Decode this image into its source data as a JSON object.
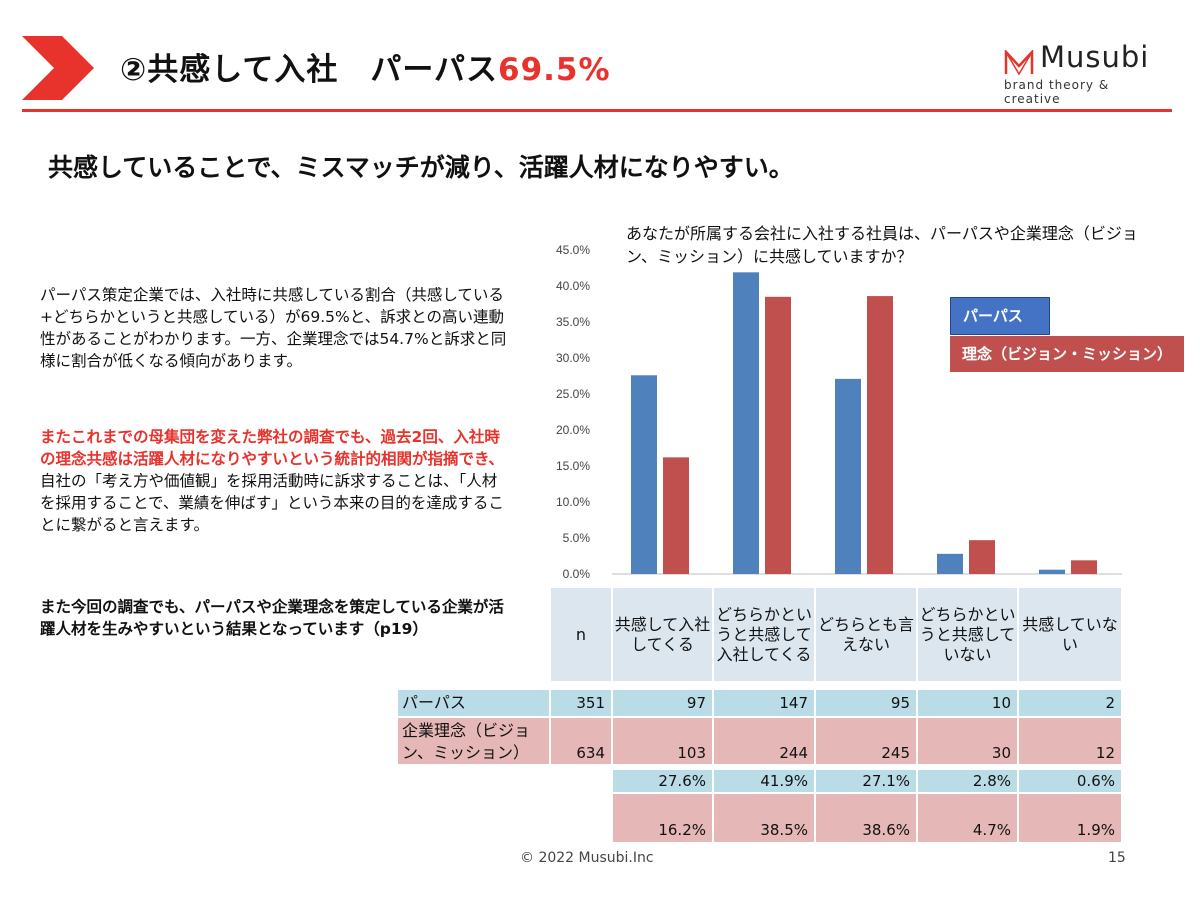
{
  "header": {
    "title_prefix": "②共感して入社　パーパス",
    "title_accent": "69.5%",
    "logo_brand": "Musubi",
    "logo_tagline": "brand theory & creative",
    "accent_color": "#e8322c"
  },
  "headline": "共感していることで、ミスマッチが減り、活躍人材になりやすい。",
  "body": {
    "para1": "パーパス策定企業では、入社時に共感している割合（共感している+どちらかというと共感している）が69.5%と、訴求との高い連動性があることがわかります。一方、企業理念では54.7%と訴求と同様に割合が低くなる傾向があります。",
    "para2_red": "またこれまでの母集団を変えた弊社の調査でも、過去2回、入社時の理念共感は活躍人材になりやすいという統計的相関が指摘でき、",
    "para2_rest": "自社の「考え方や価値観」を採用活動時に訴求することは、「人材を採用することで、業績を伸ばす」という本来の目的を達成することに繋がると言えます。",
    "para3": "また今回の調査でも、パーパスや企業理念を策定している企業が活躍人材を生みやすいという結果となっています（p19）"
  },
  "chart_data": {
    "type": "bar",
    "title": "あなたが所属する会社に入社する社員は、パーパスや企業理念（ビジョン、ミッション）に共感していますか？",
    "categories": [
      "共感して入社してくる",
      "どちらかというと共感して入社してくる",
      "どちらとも言えない",
      "どちらかというと共感していない",
      "共感していない"
    ],
    "series": [
      {
        "name": "パーパス",
        "color": "#4f81bd",
        "values": [
          27.6,
          41.9,
          27.1,
          2.8,
          0.6
        ]
      },
      {
        "name": "理念（ビジョン・ミッション）",
        "color": "#c0504d",
        "values": [
          16.2,
          38.5,
          38.6,
          4.7,
          1.9
        ]
      }
    ],
    "ylim": [
      0,
      45
    ],
    "yticks": [
      "0.0%",
      "5.0%",
      "10.0%",
      "15.0%",
      "20.0%",
      "25.0%",
      "30.0%",
      "35.0%",
      "40.0%",
      "45.0%"
    ],
    "grid": false,
    "legend_position": "right"
  },
  "table": {
    "n_header": "n",
    "col_headers": [
      "共感して入社してくる",
      "どちらかというと共感して入社してくる",
      "どちらとも言えない",
      "どちらかというと共感していない",
      "共感していない"
    ],
    "rows": [
      {
        "label": "パーパス",
        "n": "351",
        "counts": [
          "97",
          "147",
          "95",
          "10",
          "2"
        ],
        "percents": [
          "27.6%",
          "41.9%",
          "27.1%",
          "2.8%",
          "0.6%"
        ]
      },
      {
        "label": "企業理念（ビジョン、ミッション）",
        "n": "634",
        "counts": [
          "103",
          "244",
          "245",
          "30",
          "12"
        ],
        "percents": [
          "16.2%",
          "38.5%",
          "38.6%",
          "4.7%",
          "1.9%"
        ]
      }
    ]
  },
  "footer": {
    "copyright": "© 2022 Musubi.Inc",
    "page": "15"
  }
}
